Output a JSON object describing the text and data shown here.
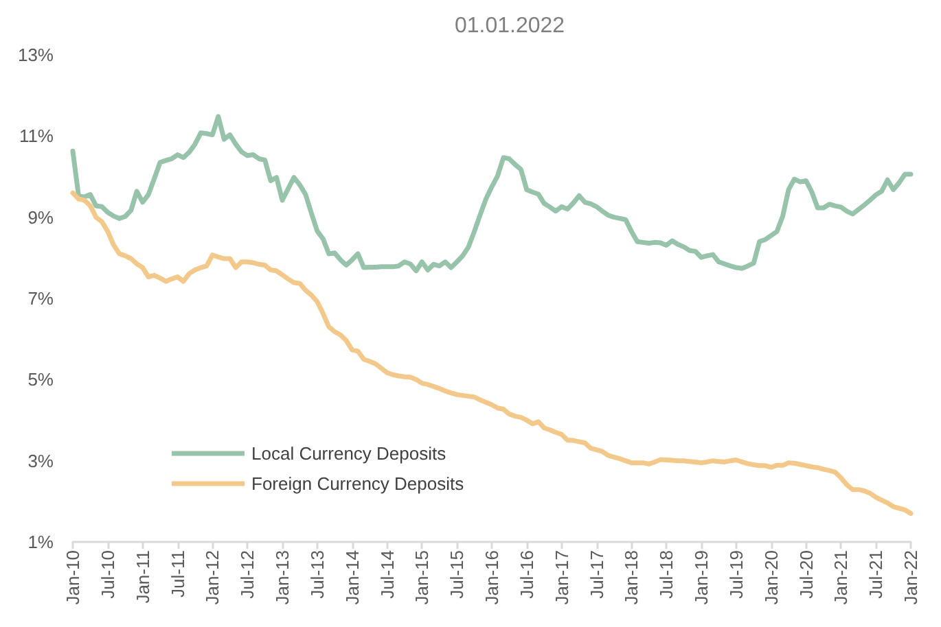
{
  "chart_data": {
    "type": "line",
    "title": "01.01.2022",
    "categories": [
      "Jan-10",
      null,
      null,
      null,
      null,
      null,
      "Jul-10",
      null,
      null,
      null,
      null,
      null,
      "Jan-11",
      null,
      null,
      null,
      null,
      null,
      "Jul-11",
      null,
      null,
      null,
      null,
      null,
      "Jan-12",
      null,
      null,
      null,
      null,
      null,
      "Jul-12",
      null,
      null,
      null,
      null,
      null,
      "Jan-13",
      null,
      null,
      null,
      null,
      null,
      "Jul-13",
      null,
      null,
      null,
      null,
      null,
      "Jan-14",
      null,
      null,
      null,
      null,
      null,
      "Jul-14",
      null,
      null,
      null,
      null,
      null,
      "Jan-15",
      null,
      null,
      null,
      null,
      null,
      "Jul-15",
      null,
      null,
      null,
      null,
      null,
      "Jan-16",
      null,
      null,
      null,
      null,
      null,
      "Jul-16",
      null,
      null,
      null,
      null,
      null,
      "Jan-17",
      null,
      null,
      null,
      null,
      null,
      "Jul-17",
      null,
      null,
      null,
      null,
      null,
      "Jan-18",
      null,
      null,
      null,
      null,
      null,
      "Jul-18",
      null,
      null,
      null,
      null,
      null,
      "Jan-19",
      null,
      null,
      null,
      null,
      null,
      "Jul-19",
      null,
      null,
      null,
      null,
      null,
      "Jan-20",
      null,
      null,
      null,
      null,
      null,
      "Jul-20",
      null,
      null,
      null,
      null,
      null,
      "Jan-21",
      null,
      null,
      null,
      null,
      null,
      "Jul-21",
      null,
      null,
      null,
      null,
      null,
      "Jan-22"
    ],
    "series": [
      {
        "name": "Local Currency Deposits",
        "color": "#96c3aa",
        "values": [
          10.63,
          9.52,
          9.5,
          9.56,
          9.28,
          9.26,
          9.12,
          9.03,
          8.97,
          9.02,
          9.17,
          9.64,
          9.37,
          9.56,
          9.95,
          10.35,
          10.4,
          10.44,
          10.54,
          10.47,
          10.6,
          10.8,
          11.08,
          11.06,
          11.03,
          11.48,
          10.92,
          11.03,
          10.8,
          10.61,
          10.52,
          10.54,
          10.44,
          10.41,
          9.9,
          9.98,
          9.42,
          9.7,
          9.98,
          9.8,
          9.56,
          9.1,
          8.66,
          8.47,
          8.1,
          8.12,
          7.95,
          7.82,
          7.95,
          8.1,
          7.76,
          7.77,
          7.77,
          7.78,
          7.78,
          7.78,
          7.8,
          7.9,
          7.85,
          7.68,
          7.9,
          7.7,
          7.84,
          7.8,
          7.9,
          7.76,
          7.9,
          8.05,
          8.27,
          8.65,
          9.06,
          9.45,
          9.75,
          10.02,
          10.47,
          10.44,
          10.3,
          10.18,
          9.68,
          9.62,
          9.57,
          9.34,
          9.25,
          9.15,
          9.26,
          9.2,
          9.35,
          9.53,
          9.37,
          9.33,
          9.26,
          9.15,
          9.05,
          9.0,
          8.97,
          8.94,
          8.65,
          8.4,
          8.38,
          8.36,
          8.38,
          8.37,
          8.31,
          8.42,
          8.33,
          8.27,
          8.18,
          8.16,
          8.01,
          8.05,
          8.08,
          7.9,
          7.85,
          7.8,
          7.76,
          7.74,
          7.8,
          7.87,
          8.4,
          8.45,
          8.55,
          8.65,
          9.03,
          9.68,
          9.94,
          9.87,
          9.9,
          9.62,
          9.23,
          9.23,
          9.32,
          9.28,
          9.25,
          9.15,
          9.08,
          9.19,
          9.3,
          9.42,
          9.55,
          9.64,
          9.92,
          9.68,
          9.85,
          10.06,
          10.06
        ]
      },
      {
        "name": "Foreign Currency Deposits",
        "color": "#f3c98b",
        "values": [
          9.6,
          9.45,
          9.42,
          9.28,
          9.0,
          8.89,
          8.65,
          8.32,
          8.1,
          8.05,
          7.98,
          7.85,
          7.76,
          7.53,
          7.57,
          7.5,
          7.42,
          7.48,
          7.53,
          7.42,
          7.61,
          7.7,
          7.76,
          7.8,
          8.07,
          8.02,
          7.98,
          7.98,
          7.76,
          7.9,
          7.9,
          7.88,
          7.84,
          7.82,
          7.7,
          7.68,
          7.58,
          7.48,
          7.39,
          7.37,
          7.2,
          7.08,
          6.92,
          6.63,
          6.3,
          6.18,
          6.1,
          5.96,
          5.73,
          5.7,
          5.5,
          5.45,
          5.39,
          5.28,
          5.17,
          5.12,
          5.09,
          5.07,
          5.06,
          5.0,
          4.91,
          4.88,
          4.83,
          4.78,
          4.72,
          4.67,
          4.63,
          4.61,
          4.59,
          4.57,
          4.5,
          4.44,
          4.38,
          4.3,
          4.27,
          4.15,
          4.1,
          4.07,
          4.0,
          3.91,
          3.96,
          3.81,
          3.76,
          3.7,
          3.65,
          3.51,
          3.5,
          3.47,
          3.44,
          3.31,
          3.27,
          3.23,
          3.13,
          3.09,
          3.05,
          3.0,
          2.95,
          2.95,
          2.95,
          2.92,
          2.97,
          3.03,
          3.02,
          3.01,
          3.0,
          3.0,
          2.98,
          2.97,
          2.95,
          2.97,
          3.0,
          2.98,
          2.97,
          3.0,
          3.02,
          2.97,
          2.93,
          2.9,
          2.88,
          2.88,
          2.84,
          2.89,
          2.89,
          2.95,
          2.94,
          2.91,
          2.88,
          2.85,
          2.83,
          2.79,
          2.76,
          2.72,
          2.58,
          2.41,
          2.29,
          2.29,
          2.26,
          2.2,
          2.1,
          2.03,
          1.96,
          1.87,
          1.83,
          1.79,
          1.7
        ]
      }
    ],
    "ylim": [
      1,
      13
    ],
    "yticks": [
      {
        "value": 1,
        "label": "1%"
      },
      {
        "value": 3,
        "label": "3%"
      },
      {
        "value": 5,
        "label": "5%"
      },
      {
        "value": 7,
        "label": "7%"
      },
      {
        "value": 9,
        "label": "9%"
      },
      {
        "value": 11,
        "label": "11%"
      },
      {
        "value": 13,
        "label": "13%"
      }
    ],
    "grid": false,
    "legend": "bottom left",
    "marker": "none",
    "line_style": "solid"
  }
}
